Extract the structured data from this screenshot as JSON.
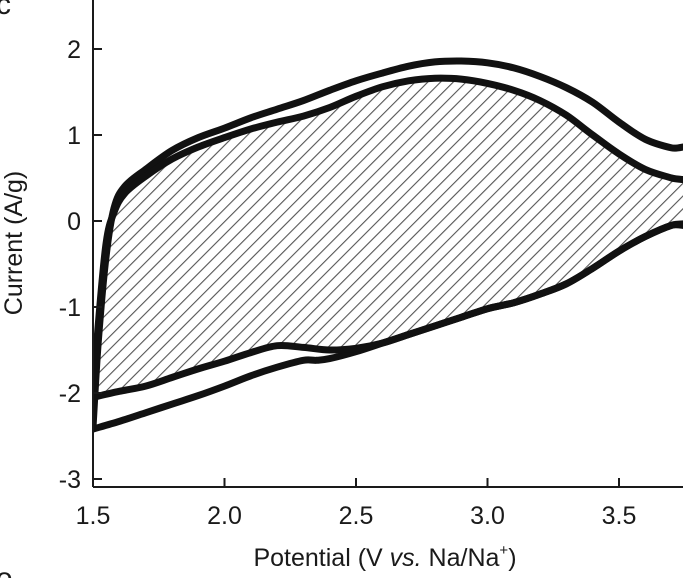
{
  "panel": {
    "top_letter": "c",
    "bottom_letter": "e"
  },
  "chart_data": {
    "type": "line",
    "xlabel": {
      "pre": "Potential (V ",
      "italic": "vs.",
      "mid": " Na/Na",
      "sup": "+",
      "post": ")"
    },
    "ylabel": "Current (A/g)",
    "xlim": [
      1.5,
      3.8
    ],
    "ylim": [
      -3,
      2.5
    ],
    "xticks": [
      1.5,
      2.0,
      2.5,
      3.0,
      3.5
    ],
    "xtick_labels": [
      "1.5",
      "2.0",
      "2.5",
      "3.0",
      "3.5"
    ],
    "yticks": [
      -3,
      -2,
      -1,
      0,
      1,
      2
    ],
    "ytick_labels": [
      "-3",
      "-2",
      "-1",
      "0",
      "1",
      "2"
    ],
    "grid": false,
    "hatched_region": "area enclosed by inner cycle",
    "colors": {
      "line": "#111111",
      "hatch": "#555555",
      "axis": "#1a1a1a"
    },
    "series": [
      {
        "x": [
          1.5,
          1.52,
          1.55,
          1.58,
          1.62,
          1.7,
          1.8,
          1.9,
          2.0,
          2.1,
          2.2,
          2.3,
          2.4,
          2.5,
          2.6,
          2.7,
          2.8,
          2.9,
          3.0,
          3.1,
          3.2,
          3.3,
          3.4,
          3.5,
          3.6,
          3.7,
          3.8,
          3.8,
          3.7,
          3.6,
          3.5,
          3.4,
          3.3,
          3.2,
          3.1,
          3.0,
          2.9,
          2.8,
          2.7,
          2.6,
          2.5,
          2.4,
          2.35,
          2.3,
          2.2,
          2.1,
          2.0,
          1.9,
          1.8,
          1.7,
          1.6,
          1.5
        ],
        "y": [
          -2.4,
          -1.4,
          -0.4,
          0.15,
          0.4,
          0.6,
          0.82,
          0.97,
          1.08,
          1.2,
          1.3,
          1.4,
          1.52,
          1.63,
          1.72,
          1.8,
          1.85,
          1.86,
          1.84,
          1.78,
          1.68,
          1.55,
          1.38,
          1.15,
          0.95,
          0.85,
          0.8,
          0.02,
          -0.05,
          -0.18,
          -0.35,
          -0.55,
          -0.73,
          -0.85,
          -0.95,
          -1.02,
          -1.12,
          -1.22,
          -1.32,
          -1.42,
          -1.52,
          -1.6,
          -1.62,
          -1.62,
          -1.7,
          -1.8,
          -1.92,
          -2.03,
          -2.13,
          -2.23,
          -2.33,
          -2.42
        ]
      },
      {
        "x": [
          1.5,
          1.52,
          1.55,
          1.58,
          1.62,
          1.7,
          1.8,
          1.9,
          2.0,
          2.1,
          2.2,
          2.3,
          2.4,
          2.5,
          2.6,
          2.7,
          2.8,
          2.9,
          3.0,
          3.1,
          3.2,
          3.3,
          3.4,
          3.5,
          3.6,
          3.7,
          3.8,
          3.8,
          3.7,
          3.6,
          3.5,
          3.4,
          3.3,
          3.2,
          3.1,
          3.0,
          2.9,
          2.8,
          2.7,
          2.6,
          2.5,
          2.4,
          2.3,
          2.2,
          2.1,
          2.0,
          1.9,
          1.8,
          1.7,
          1.6,
          1.5
        ],
        "y": [
          -2.05,
          -1.2,
          -0.25,
          0.1,
          0.32,
          0.52,
          0.72,
          0.86,
          0.97,
          1.07,
          1.15,
          1.22,
          1.32,
          1.45,
          1.56,
          1.63,
          1.66,
          1.65,
          1.6,
          1.52,
          1.4,
          1.23,
          1.0,
          0.78,
          0.6,
          0.5,
          0.42,
          0.02,
          -0.05,
          -0.18,
          -0.35,
          -0.55,
          -0.73,
          -0.85,
          -0.95,
          -1.02,
          -1.12,
          -1.22,
          -1.32,
          -1.42,
          -1.48,
          -1.5,
          -1.47,
          -1.45,
          -1.53,
          -1.63,
          -1.72,
          -1.82,
          -1.92,
          -1.98,
          -2.05
        ]
      }
    ]
  }
}
